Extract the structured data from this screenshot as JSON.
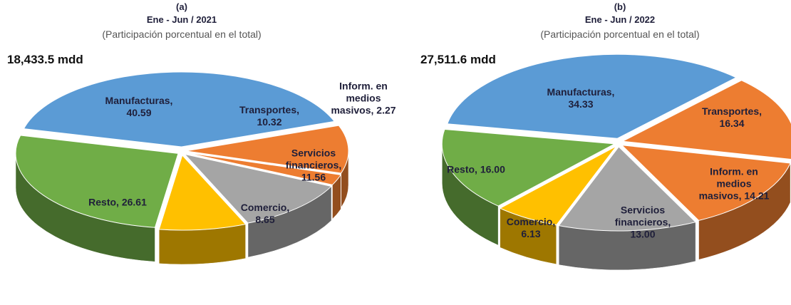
{
  "chart_data": [
    {
      "type": "pie",
      "label": "(a)",
      "title": "Ene - Jun / 2021",
      "subtitle": "(Participación porcentual en el total)",
      "total": "18,433.5 mdd",
      "values": [
        40.59,
        10.32,
        2.27,
        11.56,
        8.65,
        26.61
      ],
      "value_labels": [
        "Manufacturas, 40.59",
        "Transportes, 10.32",
        "Inform. en medios masivos, 2.27",
        "Servicios financieros, 11.56",
        "Comercio, 8.65",
        "Resto, 26.61"
      ],
      "colors": [
        "#5b9bd5",
        "#ed7d31",
        "#ed7d31",
        "#a5a5a5",
        "#ffc000",
        "#70ad47"
      ]
    },
    {
      "type": "pie",
      "label": "(b)",
      "title": "Ene - Jun / 2022",
      "subtitle": "(Participación porcentual en el total)",
      "total": "27,511.6 mdd",
      "values": [
        34.33,
        16.34,
        14.21,
        13.0,
        6.13,
        16.0
      ],
      "value_labels": [
        "Manufacturas, 34.33",
        "Transportes, 16.34",
        "Inform. en medios masivos, 14.21",
        "Servicios financieros, 13.00",
        "Comercio, 6.13",
        "Resto, 16.00"
      ],
      "colors": [
        "#5b9bd5",
        "#ed7d31",
        "#ed7d31",
        "#a5a5a5",
        "#ffc000",
        "#70ad47"
      ]
    }
  ]
}
